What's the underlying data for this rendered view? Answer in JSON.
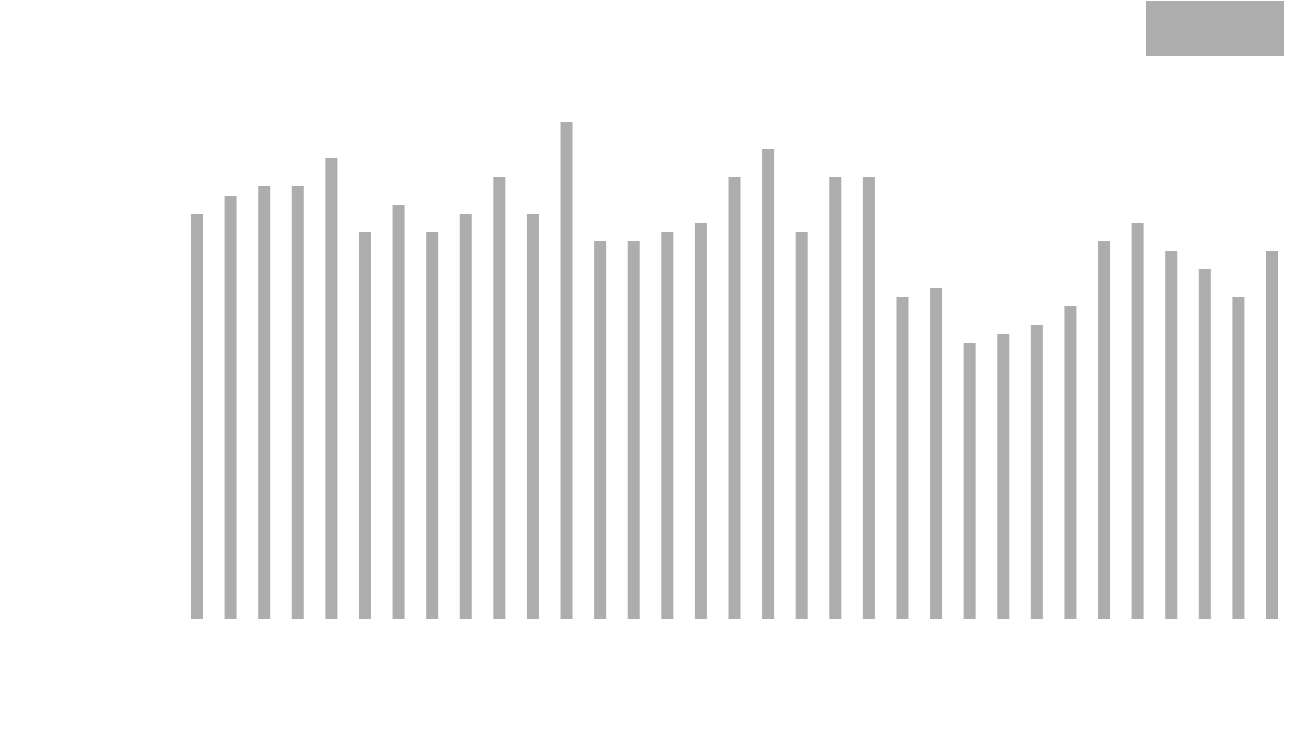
{
  "chart_data": {
    "type": "bar",
    "values": [
      405,
      423,
      433,
      433,
      461,
      387,
      414,
      387,
      405,
      442,
      405,
      497,
      378,
      378,
      387,
      396,
      442,
      470,
      387,
      442,
      442,
      322,
      331,
      276,
      285,
      294,
      313,
      378,
      396,
      368,
      350,
      322,
      368
    ],
    "color": "#adadad",
    "ylim": [
      0,
      619
    ]
  }
}
